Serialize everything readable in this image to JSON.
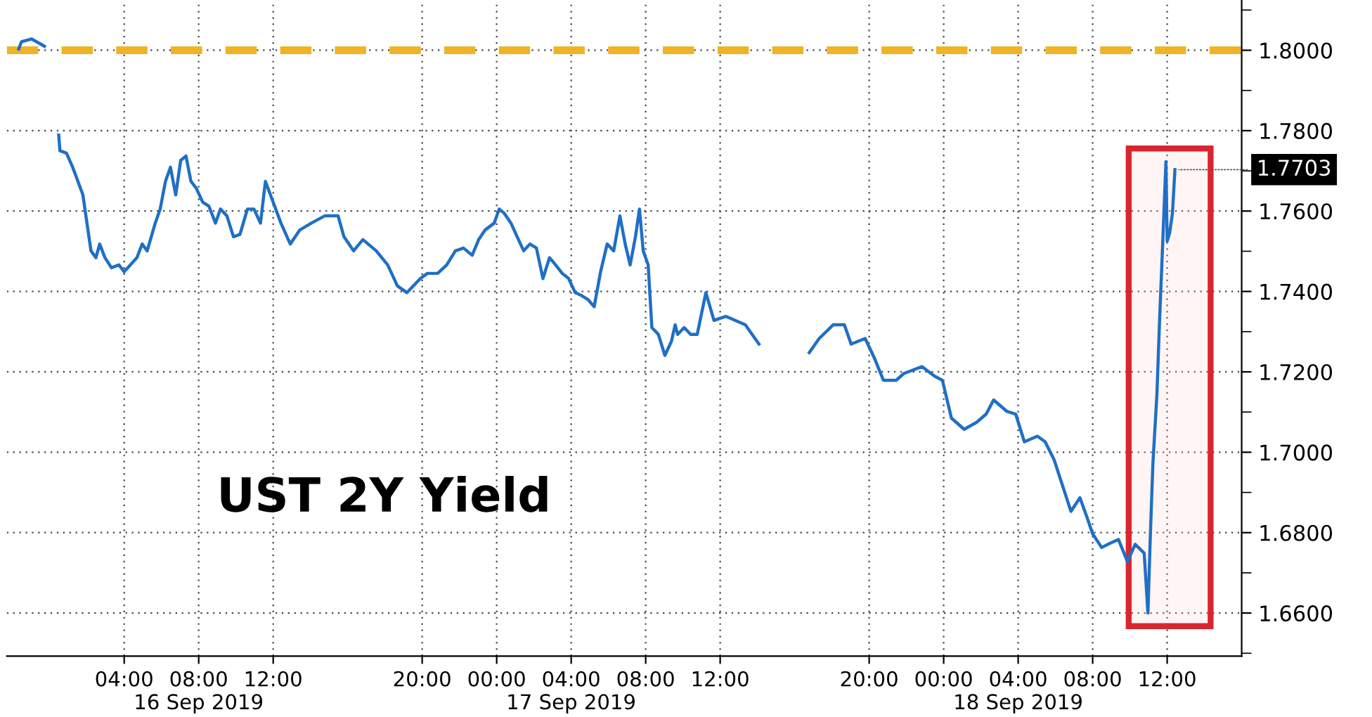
{
  "chart_data": {
    "type": "line",
    "title": "UST 2Y Yield",
    "x": [
      "2019-09-15T22:20",
      "2019-09-15T22:29",
      "2019-09-15T23:02",
      "2019-09-15T23:43",
      "2019-09-16T00:12",
      "2019-09-16T00:29",
      "2019-09-16T00:33",
      "2019-09-16T00:54",
      "2019-09-16T01:14",
      "2019-09-16T01:31",
      "2019-09-16T01:47",
      "2019-09-16T02:00",
      "2019-09-16T02:13",
      "2019-09-16T02:29",
      "2019-09-16T02:41",
      "2019-09-16T02:58",
      "2019-09-16T03:19",
      "2019-09-16T03:43",
      "2019-09-16T04:00",
      "2019-09-16T04:20",
      "2019-09-16T04:41",
      "2019-09-16T04:58",
      "2019-09-16T05:14",
      "2019-09-16T05:40",
      "2019-09-16T05:56",
      "2019-09-16T06:13",
      "2019-09-16T06:29",
      "2019-09-16T06:46",
      "2019-09-16T07:02",
      "2019-09-16T07:19",
      "2019-09-16T07:35",
      "2019-09-16T07:52",
      "2019-09-16T08:13",
      "2019-09-16T08:33",
      "2019-09-16T08:54",
      "2019-09-16T09:10",
      "2019-09-16T09:31",
      "2019-09-16T09:52",
      "2019-09-16T10:13",
      "2019-09-16T10:37",
      "2019-09-16T10:58",
      "2019-09-16T11:19",
      "2019-09-16T11:35",
      "2019-09-16T12:00",
      "2019-09-16T12:25",
      "2019-09-16T12:55",
      "2019-09-16T13:26",
      "2019-09-16T14:03",
      "2019-09-16T14:46",
      "2019-09-16T15:29",
      "2019-09-16T15:48",
      "2019-09-16T16:19",
      "2019-09-16T16:49",
      "2019-09-16T17:32",
      "2019-09-16T18:09",
      "2019-09-16T18:40",
      "2019-09-16T19:11",
      "2019-09-16T19:54",
      "2019-09-16T20:17",
      "2019-09-16T20:50",
      "2019-09-16T21:19",
      "2019-09-16T21:47",
      "2019-09-16T22:13",
      "2019-09-16T22:41",
      "2019-09-16T23:02",
      "2019-09-16T23:23",
      "2019-09-16T23:52",
      "2019-09-17T00:08",
      "2019-09-17T00:25",
      "2019-09-17T00:46",
      "2019-09-17T01:06",
      "2019-09-17T01:27",
      "2019-09-17T01:47",
      "2019-09-17T02:08",
      "2019-09-17T02:29",
      "2019-09-17T02:50",
      "2019-09-17T03:10",
      "2019-09-17T03:31",
      "2019-09-17T03:52",
      "2019-09-17T04:13",
      "2019-09-17T04:33",
      "2019-09-17T04:54",
      "2019-09-17T05:14",
      "2019-09-17T05:35",
      "2019-09-17T05:56",
      "2019-09-17T06:17",
      "2019-09-17T06:37",
      "2019-09-17T06:54",
      "2019-09-17T07:10",
      "2019-09-17T07:27",
      "2019-09-17T07:40",
      "2019-09-17T07:52",
      "2019-09-17T08:08",
      "2019-09-17T08:20",
      "2019-09-17T08:41",
      "2019-09-17T09:02",
      "2019-09-17T09:23",
      "2019-09-17T09:35",
      "2019-09-17T09:43",
      "2019-09-17T10:04",
      "2019-09-17T10:25",
      "2019-09-17T10:46",
      "2019-09-17T11:14",
      "2019-09-17T11:40",
      "2019-09-17T12:18",
      "2019-09-17T13:21",
      "2019-09-17T14:05",
      "2019-09-17T15:30",
      "2019-09-17T16:47",
      "2019-09-17T17:19",
      "2019-09-17T18:04",
      "2019-09-17T18:40",
      "2019-09-17T19:02",
      "2019-09-17T19:47",
      "2019-09-17T20:17",
      "2019-09-17T20:46",
      "2019-09-17T21:27",
      "2019-09-17T21:52",
      "2019-09-17T22:50",
      "2019-09-17T23:31",
      "2019-09-17T23:56",
      "2019-09-18T00:25",
      "2019-09-18T01:06",
      "2019-09-18T01:47",
      "2019-09-18T02:17",
      "2019-09-18T02:41",
      "2019-09-18T03:23",
      "2019-09-18T03:52",
      "2019-09-18T04:20",
      "2019-09-18T05:02",
      "2019-09-18T05:27",
      "2019-09-18T05:56",
      "2019-09-18T06:25",
      "2019-09-18T06:50",
      "2019-09-18T07:19",
      "2019-09-18T07:40",
      "2019-09-18T08:00",
      "2019-09-18T08:29",
      "2019-09-18T08:54",
      "2019-09-18T09:23",
      "2019-09-18T09:52",
      "2019-09-18T10:17",
      "2019-09-18T10:46",
      "2019-09-18T10:58",
      "2019-09-18T11:06",
      "2019-09-18T11:14",
      "2019-09-18T11:27",
      "2019-09-18T11:35",
      "2019-09-18T11:47",
      "2019-09-18T11:56",
      "2019-09-18T12:00",
      "2019-09-18T12:08",
      "2019-09-18T12:17",
      "2019-09-18T12:25"
    ],
    "series": [
      {
        "color": "#1f6fc5",
        "values": [
          1.8003,
          1.8021,
          1.8028,
          1.801,
          null,
          1.7789,
          1.775,
          1.7744,
          1.7709,
          1.7674,
          1.764,
          1.757,
          1.7501,
          1.7484,
          1.7518,
          1.7484,
          1.7459,
          1.7466,
          1.7449,
          1.7466,
          1.7484,
          1.7518,
          1.7501,
          1.757,
          1.7605,
          1.7674,
          1.7709,
          1.764,
          1.7726,
          1.7737,
          1.7674,
          1.7657,
          1.7622,
          1.7612,
          1.757,
          1.7605,
          1.7588,
          1.7536,
          1.7542,
          1.7605,
          1.7605,
          1.757,
          1.7674,
          1.7622,
          1.757,
          1.7518,
          1.7553,
          1.757,
          1.7588,
          1.7588,
          1.7536,
          1.7501,
          1.7529,
          1.7501,
          1.7466,
          1.7414,
          1.7397,
          1.7432,
          1.7445,
          1.7445,
          1.7466,
          1.7501,
          1.7508,
          1.749,
          1.7529,
          1.7553,
          1.757,
          1.7605,
          1.7594,
          1.757,
          1.7536,
          1.7501,
          1.7518,
          1.7508,
          1.7432,
          1.7484,
          1.7466,
          1.7445,
          1.7432,
          1.7397,
          1.739,
          1.738,
          1.7362,
          1.745,
          1.7518,
          1.7501,
          1.7588,
          1.7518,
          1.7466,
          1.7536,
          1.7605,
          1.7501,
          1.7466,
          1.731,
          1.7293,
          1.7241,
          1.7276,
          1.7317,
          1.7293,
          1.731,
          1.7293,
          1.7293,
          1.7397,
          1.7328,
          1.7338,
          1.7317,
          1.7269,
          null,
          1.7248,
          1.7283,
          1.7317,
          1.7317,
          1.7269,
          1.7283,
          1.7234,
          1.7179,
          1.7179,
          1.7196,
          1.7213,
          1.7189,
          1.7179,
          1.7085,
          1.7057,
          1.7075,
          1.7095,
          1.713,
          1.7102,
          1.7095,
          1.7026,
          1.704,
          1.7026,
          1.6981,
          1.6912,
          1.6853,
          1.6887,
          1.6842,
          1.6797,
          1.6763,
          1.6773,
          1.6783,
          1.6728,
          1.6771,
          1.6749,
          1.66,
          1.6797,
          1.6971,
          1.7144,
          1.7317,
          1.7546,
          1.7723,
          1.7525,
          1.7546,
          1.7594,
          1.7703
        ]
      }
    ],
    "xlim": [
      "2019-09-15T21:42",
      "2019-09-18T16:00"
    ],
    "xticks": [
      {
        "value": "2019-09-16T04:00",
        "label": "04:00"
      },
      {
        "value": "2019-09-16T08:00",
        "label": "08:00\n16 Sep 2019"
      },
      {
        "value": "2019-09-16T12:00",
        "label": "12:00"
      },
      {
        "value": "2019-09-16T20:00",
        "label": "20:00"
      },
      {
        "value": "2019-09-17T00:00",
        "label": "00:00"
      },
      {
        "value": "2019-09-17T04:00",
        "label": "04:00\n17 Sep 2019"
      },
      {
        "value": "2019-09-17T08:00",
        "label": "08:00"
      },
      {
        "value": "2019-09-17T12:00",
        "label": "12:00"
      },
      {
        "value": "2019-09-17T20:00",
        "label": "20:00"
      },
      {
        "value": "2019-09-18T00:00",
        "label": "00:00"
      },
      {
        "value": "2019-09-18T04:00",
        "label": "04:00\n18 Sep 2019"
      },
      {
        "value": "2019-09-18T08:00",
        "label": "08:00"
      },
      {
        "value": "2019-09-18T12:00",
        "label": "12:00"
      }
    ],
    "ylim": [
      1.6493,
      1.8125
    ],
    "yticks": [
      {
        "value": 1.65,
        "label": null
      },
      {
        "value": 1.66,
        "label": "1.6600"
      },
      {
        "value": 1.67,
        "label": null
      },
      {
        "value": 1.68,
        "label": "1.6800"
      },
      {
        "value": 1.69,
        "label": null
      },
      {
        "value": 1.7,
        "label": "1.7000"
      },
      {
        "value": 1.71,
        "label": null
      },
      {
        "value": 1.72,
        "label": "1.7200"
      },
      {
        "value": 1.73,
        "label": null
      },
      {
        "value": 1.74,
        "label": "1.7400"
      },
      {
        "value": 1.75,
        "label": null
      },
      {
        "value": 1.76,
        "label": "1.7600"
      },
      {
        "value": 1.77,
        "label": null
      },
      {
        "value": 1.78,
        "label": "1.7800"
      },
      {
        "value": 1.79,
        "label": null
      },
      {
        "value": 1.8,
        "label": "1.8000"
      },
      {
        "value": 1.81,
        "label": null
      }
    ],
    "grid": true,
    "ref_lines": [
      {
        "axis": "y",
        "value": 1.8,
        "color": "#f0b323",
        "line_style": "dashed"
      }
    ],
    "bands": [
      {
        "axis": "x",
        "from": "2019-09-18T09:56",
        "to": "2019-09-18T14:20",
        "color": "#d9262e"
      }
    ],
    "annotations": [
      {
        "text": "1.7703",
        "x": "2019-09-18T12:25",
        "y": 1.7703
      }
    ]
  }
}
